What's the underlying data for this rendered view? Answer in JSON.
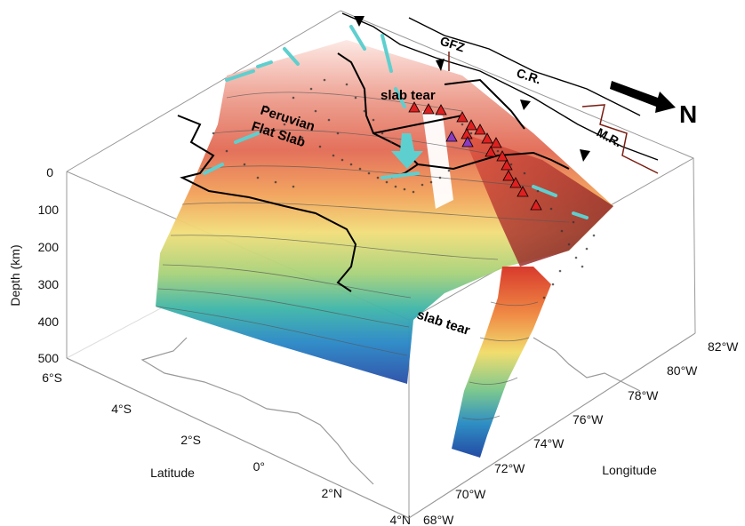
{
  "annotations": {
    "slab_tear_top": "slab tear",
    "slab_tear_bottom": "slab tear",
    "peruvian_flat_slab_line1": "Peruvian",
    "peruvian_flat_slab_line2": "Flat Slab",
    "gfz": "GFZ",
    "cr": "C.R.",
    "mr": "M.R.",
    "north": "N"
  },
  "axes": {
    "depth_label": "Depth (km)",
    "latitude_label": "Latitude",
    "longitude_label": "Longitude",
    "depth_ticks": [
      "0",
      "100",
      "200",
      "300",
      "400",
      "500"
    ],
    "latitude_ticks": [
      "6°S",
      "4°S",
      "2°S",
      "0°",
      "2°N",
      "4°N"
    ],
    "longitude_ticks": [
      "68°W",
      "70°W",
      "72°W",
      "74°W",
      "76°W",
      "78°W",
      "80°W",
      "82°W"
    ]
  },
  "colors": {
    "shallow": "#c62828",
    "mid": "#f0e060",
    "deep": "#1f5fb4",
    "volcano": "#e02020",
    "adakite": "#8a3bbf",
    "stress_axis": "#5ecfcf"
  },
  "icons": {
    "north_arrow": "arrow-icon",
    "volcano": "triangle-icon",
    "trench": "barbed-trench-icon"
  }
}
